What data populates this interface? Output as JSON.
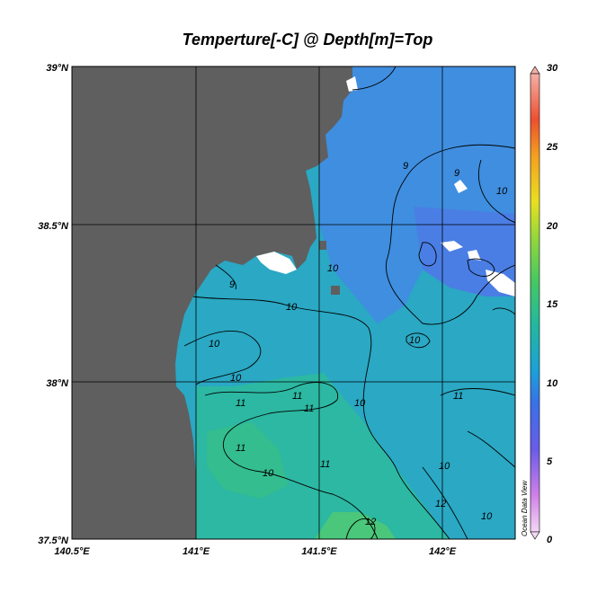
{
  "title": "Temperture[-C] @ Depth[m]=Top",
  "watermark": "Ocean Data View",
  "axes": {
    "lat_ticks": [
      "39°N",
      "38.5°N",
      "38°N",
      "37.5°N"
    ],
    "lon_ticks": [
      "140.5°E",
      "141°E",
      "141.5°E",
      "142°E"
    ]
  },
  "colorbar": {
    "ticks": [
      "30",
      "25",
      "20",
      "15",
      "10",
      "5",
      "0"
    ],
    "range": [
      0,
      30
    ]
  },
  "contour_labels": [
    "9",
    "9",
    "10",
    "9",
    "10",
    "10",
    "10",
    "10",
    "11",
    "11",
    "10",
    "11",
    "11",
    "11",
    "10",
    "10",
    "11",
    "10",
    "12",
    "12",
    "10"
  ],
  "colors": {
    "land": "#5f5f5f",
    "sea_9": "#3f8bd8",
    "sea_10": "#1fa8c8",
    "sea_11": "#2ab8a0",
    "sea_12": "#46c878"
  }
}
